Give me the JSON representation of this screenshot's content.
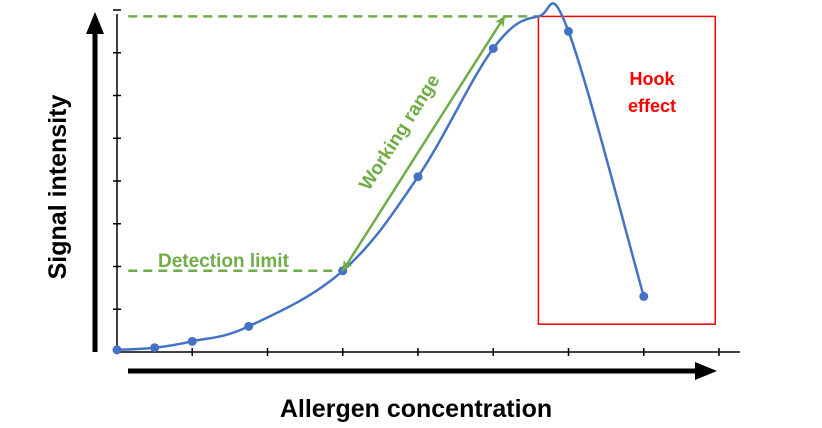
{
  "chart_data": {
    "type": "line",
    "title": "",
    "xlabel": "Allergen concentration",
    "ylabel": "Signal intensity",
    "xlim": [
      0,
      8
    ],
    "ylim": [
      0,
      8
    ],
    "grid": false,
    "colors": {
      "curve": "#4472c4",
      "points": "#4472c4",
      "working": "#70ad47",
      "hook": "#ff0000",
      "axes": "#000000"
    },
    "series": [
      {
        "x": [
          0,
          0.5,
          1,
          1.75,
          3,
          4,
          5,
          6,
          7
        ],
        "y": [
          0.05,
          0.1,
          0.25,
          0.6,
          1.9,
          4.1,
          7.1,
          7.5,
          1.3
        ]
      }
    ],
    "annotations": {
      "detection_limit": {
        "text": "Detection limit",
        "x": 3,
        "y": 1.9
      },
      "working_range": {
        "text": "Working range",
        "from": [
          3,
          1.9
        ],
        "to": [
          5.15,
          7.85
        ]
      },
      "plateau": {
        "x": 5.6,
        "y": 7.85
      },
      "hook_effect": {
        "text_line1": "Hook",
        "text_line2": "effect",
        "x0": 5.6,
        "x1": 7.95,
        "y0": 0.65,
        "y1": 7.85
      }
    }
  }
}
